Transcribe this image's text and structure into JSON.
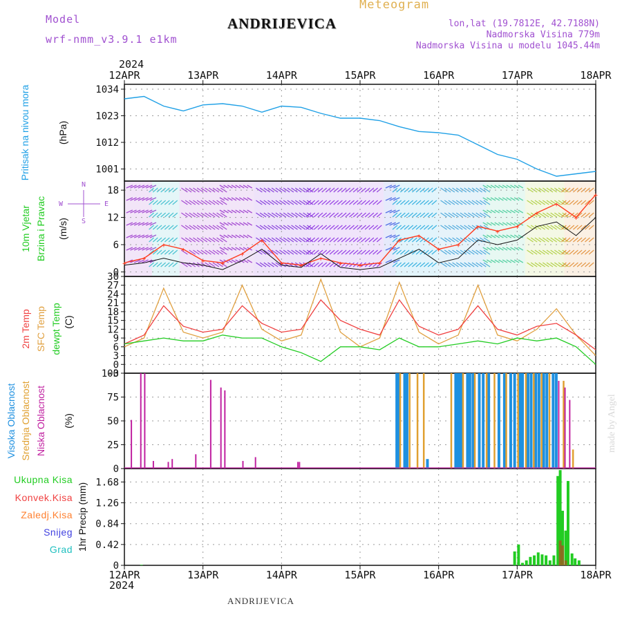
{
  "header": {
    "model_label": "Model",
    "model_name": "wrf-nmm_v3.9.1 e1km",
    "station": "ANDRIJEVICA",
    "meteogram": "Meteogram",
    "lonlat": "lon,lat (19.7812E, 42.7188N)",
    "altitude": "Nadmorska Visina 779m",
    "model_altitude": "Nadmorska Visina u modelu 1045.44m"
  },
  "footer": {
    "station": "ANDRIJEVICA",
    "credit": "made by Angel"
  },
  "time_axis": {
    "year": "2024",
    "labels": [
      "12APR",
      "13APR",
      "14APR",
      "15APR",
      "16APR",
      "17APR",
      "18APR"
    ]
  },
  "colors": {
    "pressure": "#1fa0e6",
    "wind_speed": "#ff3b1e",
    "wind_gust": "#111111",
    "temp2m": "#f04040",
    "sfc_temp": "#e0a040",
    "dewpoint": "#22cc22",
    "high_cloud": "#1e90e0",
    "mid_cloud": "#e0a030",
    "low_cloud": "#c020a0",
    "precip_total": "#22cc22",
    "precip_conv": "#f04040",
    "precip_frz": "#ff8030",
    "snow": "#4040e0",
    "hail": "#20c0c0",
    "purple_text": "#a050d0",
    "gold_text": "#e0b050"
  },
  "chart_data": [
    {
      "type": "line",
      "panel": "pressure",
      "ylabel": [
        "Pritisak na nivou mora",
        "(hPa)"
      ],
      "yticks": [
        1001,
        1012,
        1023,
        1034
      ],
      "ylim": [
        996,
        1036
      ],
      "x_days": [
        0,
        0.25,
        0.5,
        0.75,
        1,
        1.25,
        1.5,
        1.75,
        2,
        2.25,
        2.5,
        2.75,
        3,
        3.25,
        3.5,
        3.75,
        4,
        4.25,
        4.5,
        4.75,
        5,
        5.25,
        5.5,
        5.75,
        6
      ],
      "series": [
        {
          "name": "Pritisak na nivou mora",
          "values": [
            1030,
            1031,
            1027,
            1025,
            1027.5,
            1028,
            1027,
            1024.5,
            1027,
            1026.5,
            1024,
            1022,
            1022,
            1021,
            1018.5,
            1016.5,
            1016,
            1015,
            1011,
            1007,
            1005,
            1001,
            998,
            999,
            1000
          ]
        }
      ]
    },
    {
      "type": "line",
      "panel": "wind",
      "ylabel": [
        "10m Vjetar",
        "Brzina i Pravac",
        "(m/s)"
      ],
      "yticks": [
        0,
        6,
        12,
        18
      ],
      "ylim": [
        -1,
        20
      ],
      "compass": [
        "N",
        "S",
        "W",
        "E"
      ],
      "x_days": [
        0,
        0.25,
        0.5,
        0.75,
        1,
        1.25,
        1.5,
        1.75,
        2,
        2.25,
        2.5,
        2.75,
        3,
        3.25,
        3.5,
        3.75,
        4,
        4.25,
        4.5,
        4.75,
        5,
        5.25,
        5.5,
        5.75,
        6
      ],
      "series": [
        {
          "name": "gust",
          "values": [
            1.5,
            2,
            3,
            2,
            1.5,
            0.5,
            2.5,
            5,
            1.5,
            1,
            4,
            1,
            0.5,
            1,
            3,
            5,
            2,
            3,
            7,
            6,
            7,
            10,
            11,
            8,
            12
          ]
        },
        {
          "name": "speed",
          "values": [
            2,
            3,
            6,
            5,
            2.5,
            2,
            4,
            7,
            2,
            1.5,
            3,
            2,
            1.5,
            2,
            7,
            8,
            5,
            6,
            10,
            9,
            10,
            13,
            15,
            12,
            17
          ]
        }
      ]
    },
    {
      "type": "line",
      "panel": "temperature",
      "ylabel": [
        "2m Temp",
        "SFC Temp",
        "dewpt Temp",
        "(C)"
      ],
      "yticks": [
        -3,
        0,
        3,
        6,
        9,
        12,
        15,
        18,
        21,
        24,
        27,
        30
      ],
      "ylim": [
        -3,
        30
      ],
      "x_days": [
        0,
        0.25,
        0.5,
        0.75,
        1,
        1.25,
        1.5,
        1.75,
        2,
        2.25,
        2.5,
        2.75,
        3,
        3.25,
        3.5,
        3.75,
        4,
        4.25,
        4.5,
        4.75,
        5,
        5.25,
        5.5,
        5.75,
        6
      ],
      "series": [
        {
          "name": "2m Temp",
          "values": [
            7,
            10,
            20,
            13,
            11,
            12,
            20,
            14,
            11,
            12,
            22,
            15,
            12,
            10,
            22,
            13,
            10,
            12,
            20,
            12,
            10,
            13,
            14,
            10,
            5
          ]
        },
        {
          "name": "SFC Temp",
          "values": [
            6,
            9,
            26,
            11,
            9,
            11,
            27,
            12,
            8,
            10,
            29,
            11,
            6,
            9,
            28,
            11,
            7,
            10,
            27,
            10,
            8,
            12,
            19,
            10,
            3
          ]
        },
        {
          "name": "dewpt Temp",
          "values": [
            7,
            8,
            9,
            8,
            8,
            10,
            9,
            9,
            6,
            4,
            1,
            6,
            6,
            5,
            9,
            6,
            6,
            7,
            8,
            7,
            9,
            8,
            9,
            6,
            0
          ]
        }
      ]
    },
    {
      "type": "bar",
      "panel": "clouds",
      "ylabel": [
        "Visoka Oblacnost",
        "Srednja Oblacnost",
        "Niska Oblacnost",
        "(%)"
      ],
      "yticks": [
        0,
        25,
        50,
        75,
        100
      ],
      "ylim": [
        0,
        100
      ],
      "series": [
        {
          "name": "Niska Oblacnost",
          "x_days": [
            0.08,
            0.2,
            0.25,
            0.36,
            0.55,
            0.6,
            0.9,
            1.09,
            1.22,
            1.27,
            1.5,
            1.66,
            2.2,
            2.22,
            5.52,
            5.6,
            5.66
          ],
          "values": [
            51,
            100,
            100,
            8,
            7,
            10,
            15,
            93,
            85,
            82,
            8,
            12,
            7,
            7,
            92,
            85,
            72
          ]
        },
        {
          "name": "Srednja Oblacnost",
          "x_days": [
            3.5,
            3.62,
            3.72,
            3.8,
            4.15,
            4.3,
            4.45,
            4.6,
            4.7,
            4.85,
            5.0,
            5.1,
            5.2,
            5.3,
            5.4,
            5.58,
            5.7
          ],
          "values": [
            100,
            100,
            100,
            100,
            100,
            100,
            100,
            100,
            100,
            100,
            100,
            100,
            100,
            100,
            100,
            92,
            20
          ]
        },
        {
          "name": "Visoka Oblacnost",
          "x_days": [
            3.45,
            3.48,
            3.55,
            3.58,
            3.84,
            4.2,
            4.22,
            4.25,
            4.28,
            4.35,
            4.38,
            4.42,
            4.5,
            4.55,
            4.62,
            4.75,
            4.82,
            4.9,
            4.95,
            5.02,
            5.05,
            5.12,
            5.16,
            5.22,
            5.26,
            5.32,
            5.36,
            5.44,
            5.48
          ],
          "values": [
            100,
            100,
            100,
            100,
            10,
            100,
            100,
            100,
            100,
            100,
            100,
            100,
            100,
            100,
            100,
            100,
            100,
            100,
            100,
            100,
            100,
            100,
            100,
            100,
            100,
            100,
            100,
            100,
            100
          ]
        }
      ]
    },
    {
      "type": "bar",
      "panel": "precip",
      "ylabel": [
        "1hr Precip (mm)"
      ],
      "legend": [
        "Ukupna Kisa",
        "Konvek.Kisa",
        "Zaledj.Kisa",
        "Snijeg",
        "Grad"
      ],
      "yticks": [
        0,
        0.42,
        0.84,
        1.26,
        1.68
      ],
      "ylim": [
        0,
        1.95
      ],
      "series": [
        {
          "name": "Ukupna Kisa",
          "x_days": [
            0.2,
            4.95,
            5.0,
            5.05,
            5.1,
            5.15,
            5.2,
            5.25,
            5.3,
            5.35,
            5.4,
            5.45,
            5.5,
            5.53,
            5.56,
            5.6,
            5.63,
            5.68,
            5.72,
            5.77
          ],
          "values": [
            0.01,
            0.28,
            0.42,
            0.05,
            0.1,
            0.17,
            0.2,
            0.26,
            0.22,
            0.2,
            0.1,
            0.2,
            1.8,
            1.92,
            1.1,
            0.7,
            1.7,
            0.24,
            0.14,
            0.1
          ]
        },
        {
          "name": "Konvek.Kisa",
          "x_days": [
            5.53,
            5.56,
            5.6
          ],
          "values": [
            0.5,
            0.4,
            0.1
          ]
        }
      ]
    }
  ]
}
